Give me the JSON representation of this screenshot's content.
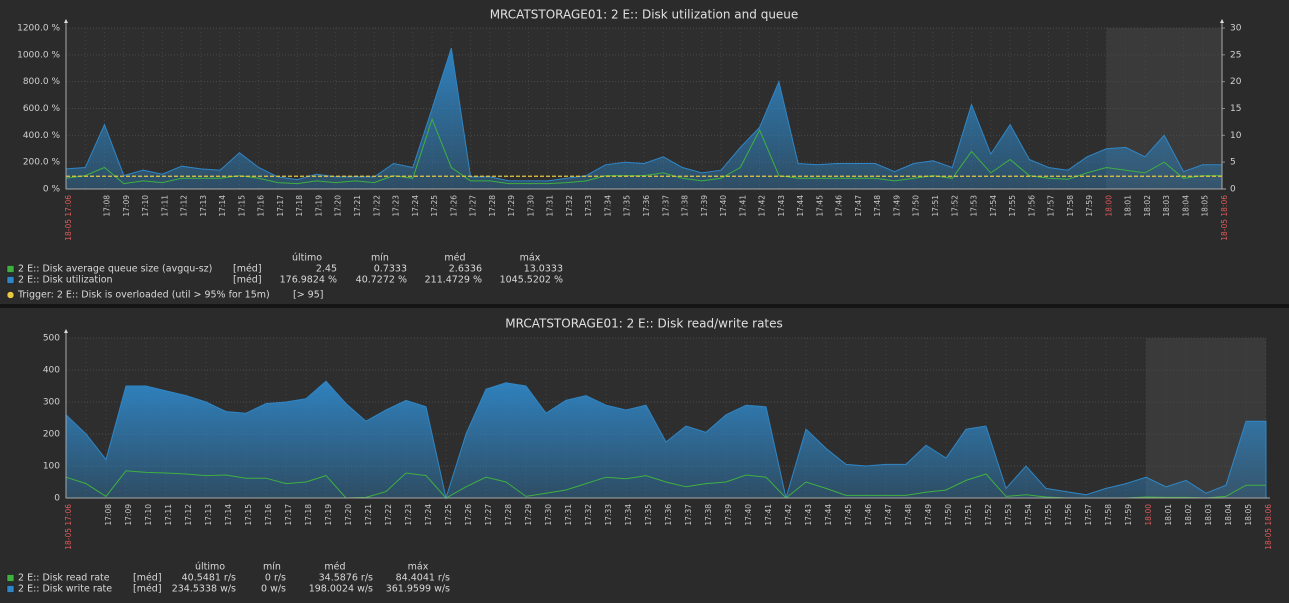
{
  "chart_data": [
    {
      "type": "line",
      "title": "MRCATSTORAGE01: 2 E:: Disk utilization and queue",
      "categories": [
        "18-05 17:06",
        null,
        "17:08",
        "17:09",
        "17:10",
        "17:11",
        "17:12",
        "17:13",
        "17:14",
        "17:15",
        "17:16",
        "17:17",
        "17:18",
        "17:19",
        "17:20",
        "17:21",
        "17:22",
        "17:23",
        "17:24",
        "17:25",
        "17:26",
        "17:27",
        "17:28",
        "17:29",
        "17:30",
        "17:31",
        "17:32",
        "17:33",
        "17:34",
        "17:35",
        "17:36",
        "17:37",
        "17:38",
        "17:39",
        "17:40",
        "17:41",
        "17:42",
        "17:43",
        "17:44",
        "17:45",
        "17:46",
        "17:47",
        "17:48",
        "17:49",
        "17:50",
        "17:51",
        "17:52",
        "17:53",
        "17:54",
        "17:55",
        "17:56",
        "17:57",
        "17:58",
        "17:59",
        "18:00",
        "18:01",
        "18:02",
        "18:03",
        "18:04",
        "18:05",
        "18-05 18:06"
      ],
      "legend_columns": [
        "último",
        "mín",
        "méd",
        "máx"
      ],
      "series": [
        {
          "name": "2 E:: Disk average queue size (avgqu-sz)",
          "color": "#3fb03f",
          "style": "line",
          "axis": "y2",
          "func": "[méd]",
          "stats": [
            "2.45",
            "0.7333",
            "2.6336",
            "13.0333"
          ],
          "values": [
            2,
            2.5,
            4,
            1,
            1.5,
            1.2,
            2,
            2,
            2,
            2.5,
            2,
            1.2,
            1,
            1.5,
            1.2,
            1.5,
            1.2,
            2.5,
            2,
            13,
            4,
            1.5,
            1.5,
            1,
            1,
            1,
            1.2,
            1.5,
            2.5,
            2.5,
            2.5,
            3,
            2,
            1.5,
            2,
            4,
            11,
            2.5,
            2,
            2,
            2,
            2,
            2,
            1.5,
            2,
            2.5,
            2,
            7,
            3,
            5.5,
            2.5,
            2,
            1.8,
            3,
            4,
            3.5,
            3,
            5,
            2,
            2.5,
            2.5
          ]
        },
        {
          "name": "2 E:: Disk utilization",
          "color": "#2f86c6",
          "style": "area",
          "func": "[méd]",
          "stats": [
            "176.9824 %",
            "40.7272 %",
            "211.4729 %",
            "1045.5202 %"
          ],
          "values": [
            150,
            160,
            480,
            100,
            140,
            110,
            170,
            150,
            140,
            270,
            160,
            90,
            70,
            110,
            90,
            90,
            90,
            190,
            160,
            600,
            1050,
            90,
            90,
            60,
            60,
            60,
            80,
            100,
            180,
            200,
            190,
            240,
            160,
            120,
            140,
            310,
            460,
            800,
            190,
            180,
            190,
            190,
            190,
            130,
            190,
            210,
            160,
            630,
            260,
            480,
            220,
            160,
            140,
            240,
            300,
            310,
            240,
            400,
            130,
            180,
            180
          ]
        }
      ],
      "trigger": {
        "name": "Trigger: 2 E:: Disk is overloaded (util > 95% for 15m)",
        "condition": "[> 95]",
        "value": 95,
        "color": "#e8c840"
      },
      "ylim": [
        0,
        1200
      ],
      "yticks": [
        {
          "value": 0,
          "label": "0 %"
        },
        {
          "value": 200,
          "label": "200.0 %"
        },
        {
          "value": 400,
          "label": "400.0 %"
        },
        {
          "value": 600,
          "label": "600.0 %"
        },
        {
          "value": 800,
          "label": "800.0 %"
        },
        {
          "value": 1000,
          "label": "1000.0 %"
        },
        {
          "value": 1200,
          "label": "1200.0 %"
        }
      ],
      "y2lim": [
        0,
        30
      ],
      "y2ticks": [
        0,
        5,
        10,
        15,
        20,
        25,
        30
      ],
      "grid": true
    },
    {
      "type": "line",
      "title": "MRCATSTORAGE01: 2 E:: Disk read/write rates",
      "categories": [
        "18-05 17:06",
        null,
        "17:08",
        "17:09",
        "17:10",
        "17:11",
        "17:12",
        "17:13",
        "17:14",
        "17:15",
        "17:16",
        "17:17",
        "17:18",
        "17:19",
        "17:20",
        "17:21",
        "17:22",
        "17:23",
        "17:24",
        "17:25",
        "17:26",
        "17:27",
        "17:28",
        "17:29",
        "17:30",
        "17:31",
        "17:32",
        "17:33",
        "17:34",
        "17:35",
        "17:36",
        "17:37",
        "17:38",
        "17:39",
        "17:40",
        "17:41",
        "17:42",
        "17:43",
        "17:44",
        "17:45",
        "17:46",
        "17:47",
        "17:48",
        "17:49",
        "17:50",
        "17:51",
        "17:52",
        "17:53",
        "17:54",
        "17:55",
        "17:56",
        "17:57",
        "17:58",
        "17:59",
        "18:00",
        "18:01",
        "18:02",
        "18:03",
        "18:04",
        "18:05",
        "18-05 18:06"
      ],
      "legend_columns": [
        "último",
        "mín",
        "méd",
        "máx"
      ],
      "series": [
        {
          "name": "2 E:: Disk read rate",
          "color": "#3fb03f",
          "style": "line",
          "func": "[méd]",
          "stats": [
            "40.5481 r/s",
            "0 r/s",
            "34.5876 r/s",
            "84.4041 r/s"
          ],
          "values": [
            65,
            45,
            5,
            85,
            80,
            78,
            75,
            70,
            72,
            62,
            62,
            45,
            50,
            70,
            0,
            2,
            20,
            78,
            70,
            0,
            35,
            65,
            50,
            5,
            15,
            25,
            45,
            65,
            60,
            70,
            50,
            35,
            45,
            50,
            72,
            65,
            0,
            50,
            30,
            8,
            8,
            8,
            8,
            18,
            25,
            55,
            75,
            5,
            10,
            3,
            0,
            0,
            0,
            0,
            3,
            2,
            2,
            0,
            5,
            40,
            40
          ]
        },
        {
          "name": "2 E:: Disk write rate",
          "color": "#2f86c6",
          "style": "area",
          "func": "[méd]",
          "stats": [
            "234.5338 w/s",
            "0 w/s",
            "198.0024 w/s",
            "361.9599 w/s"
          ],
          "values": [
            260,
            200,
            120,
            350,
            350,
            335,
            320,
            300,
            270,
            265,
            295,
            300,
            310,
            365,
            295,
            240,
            275,
            305,
            285,
            0,
            200,
            340,
            360,
            350,
            265,
            305,
            320,
            290,
            275,
            290,
            175,
            225,
            205,
            260,
            290,
            285,
            0,
            215,
            155,
            105,
            100,
            105,
            105,
            165,
            125,
            215,
            225,
            30,
            100,
            30,
            20,
            10,
            30,
            45,
            65,
            35,
            55,
            15,
            40,
            240,
            240
          ]
        }
      ],
      "ylim": [
        0,
        500
      ],
      "yticks": [
        0,
        100,
        200,
        300,
        400,
        500
      ],
      "grid": true
    }
  ]
}
